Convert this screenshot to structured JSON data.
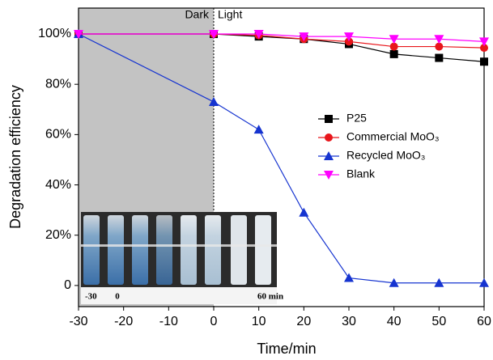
{
  "chart_data": {
    "type": "line",
    "x_label": "Time/min",
    "y_label": "Degradation efficiency",
    "x": [
      -30,
      0,
      10,
      20,
      30,
      40,
      50,
      60
    ],
    "series": [
      {
        "name": "P25",
        "color": "#000000",
        "marker": "square",
        "values": [
          100,
          100,
          99,
          98,
          96,
          92,
          90.5,
          89
        ]
      },
      {
        "name": "Commercial MoO₃",
        "color": "#e8161b",
        "marker": "circle",
        "values": [
          100,
          100,
          99.5,
          98,
          97,
          95,
          95,
          94.5
        ]
      },
      {
        "name": "Recycled MoO₃",
        "color": "#1634d0",
        "marker": "triangle-up",
        "values": [
          100,
          73,
          62,
          29,
          3,
          1,
          1,
          1
        ]
      },
      {
        "name": "Blank",
        "color": "#ff00ff",
        "marker": "triangle-down",
        "values": [
          100,
          100,
          100,
          99,
          99,
          98,
          98,
          97
        ]
      }
    ],
    "xlim": [
      -30,
      60
    ],
    "xticks": [
      -30,
      -20,
      -10,
      0,
      10,
      20,
      30,
      40,
      50,
      60
    ],
    "ylim": [
      -8.4,
      110.3
    ],
    "yticks": [
      0,
      {
        "value": 20,
        "label": "20%"
      },
      {
        "value": 40,
        "label": "40%"
      },
      {
        "value": 60,
        "label": "60%"
      },
      {
        "value": 80,
        "label": "80%"
      },
      {
        "value": 100,
        "label": "100%"
      }
    ],
    "legend": "right",
    "dark_region": [
      -30,
      0
    ],
    "annotations": {
      "dark": "Dark",
      "light": "Light"
    },
    "inset_labels": [
      "-30",
      "0",
      "60 min"
    ]
  }
}
